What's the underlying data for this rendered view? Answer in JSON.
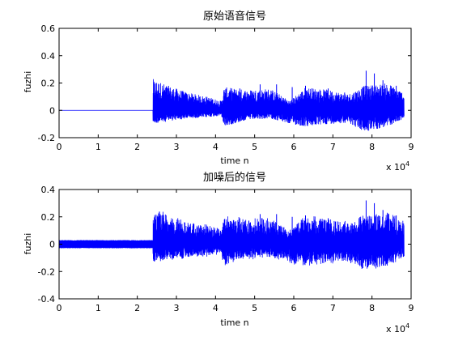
{
  "chart_data": [
    {
      "type": "line",
      "title": "原始语音信号",
      "xlabel": "time n",
      "ylabel": "fuzhi",
      "x_exponent_base": "x 10",
      "x_exponent_power": "4",
      "xlim": [
        0,
        9
      ],
      "ylim": [
        -0.2,
        0.6
      ],
      "xticks": [
        "0",
        "1",
        "2",
        "3",
        "4",
        "5",
        "6",
        "7",
        "8",
        "9"
      ],
      "yticks": [
        "-0.2",
        "0",
        "0.2",
        "0.4",
        "0.6"
      ],
      "grid": false,
      "line_color": "#0000ff",
      "signal": {
        "total_samples_x1e4": 8.82,
        "silence_end_x1e4": 2.4,
        "noise_amplitude": 0,
        "envelope": [
          [
            2.4,
            0.23,
            -0.1
          ],
          [
            2.8,
            0.18,
            -0.08
          ],
          [
            3.3,
            0.13,
            -0.06
          ],
          [
            3.8,
            0.1,
            -0.05
          ],
          [
            4.15,
            0.07,
            -0.04
          ],
          [
            4.22,
            0.17,
            -0.12
          ],
          [
            4.8,
            0.15,
            -0.07
          ],
          [
            5.4,
            0.16,
            -0.06
          ],
          [
            5.9,
            0.07,
            -0.1
          ],
          [
            6.3,
            0.17,
            -0.12
          ],
          [
            6.9,
            0.15,
            -0.1
          ],
          [
            7.4,
            0.12,
            -0.09
          ],
          [
            7.8,
            0.18,
            -0.16
          ],
          [
            8.4,
            0.2,
            -0.12
          ],
          [
            8.82,
            0.13,
            -0.06
          ]
        ],
        "spikes": [
          [
            4.62,
            0.16
          ],
          [
            5.14,
            0.19
          ],
          [
            5.56,
            0.19
          ],
          [
            5.96,
            0.17
          ],
          [
            6.3,
            0.18
          ],
          [
            6.88,
            0.16
          ],
          [
            7.3,
            0.13
          ],
          [
            7.85,
            0.29
          ],
          [
            8.06,
            0.27
          ],
          [
            8.28,
            0.22
          ],
          [
            8.62,
            0.18
          ]
        ]
      }
    },
    {
      "type": "line",
      "title": "加噪后的信号",
      "xlabel": "time n",
      "ylabel": "fuzhi",
      "x_exponent_base": "x 10",
      "x_exponent_power": "4",
      "xlim": [
        0,
        9
      ],
      "ylim": [
        -0.4,
        0.4
      ],
      "xticks": [
        "0",
        "1",
        "2",
        "3",
        "4",
        "5",
        "6",
        "7",
        "8",
        "9"
      ],
      "yticks": [
        "-0.4",
        "-0.2",
        "0",
        "0.2",
        "0.4"
      ],
      "grid": false,
      "line_color": "#0000ff",
      "signal": {
        "total_samples_x1e4": 8.82,
        "silence_end_x1e4": 2.4,
        "noise_amplitude": 0.03,
        "envelope": [
          [
            2.4,
            0.26,
            -0.13
          ],
          [
            2.8,
            0.21,
            -0.11
          ],
          [
            3.3,
            0.16,
            -0.09
          ],
          [
            3.8,
            0.13,
            -0.08
          ],
          [
            4.15,
            0.1,
            -0.07
          ],
          [
            4.22,
            0.2,
            -0.15
          ],
          [
            4.8,
            0.18,
            -0.1
          ],
          [
            5.4,
            0.19,
            -0.09
          ],
          [
            5.9,
            0.1,
            -0.13
          ],
          [
            6.3,
            0.2,
            -0.15
          ],
          [
            6.9,
            0.18,
            -0.13
          ],
          [
            7.4,
            0.15,
            -0.12
          ],
          [
            7.8,
            0.21,
            -0.19
          ],
          [
            8.4,
            0.23,
            -0.15
          ],
          [
            8.82,
            0.16,
            -0.09
          ]
        ],
        "spikes": [
          [
            4.62,
            0.19
          ],
          [
            5.14,
            0.22
          ],
          [
            5.56,
            0.22
          ],
          [
            5.96,
            0.2
          ],
          [
            6.3,
            0.21
          ],
          [
            6.88,
            0.19
          ],
          [
            7.3,
            0.16
          ],
          [
            7.85,
            0.32
          ],
          [
            8.06,
            0.3
          ],
          [
            8.28,
            0.25
          ],
          [
            8.62,
            0.21
          ]
        ]
      }
    }
  ]
}
